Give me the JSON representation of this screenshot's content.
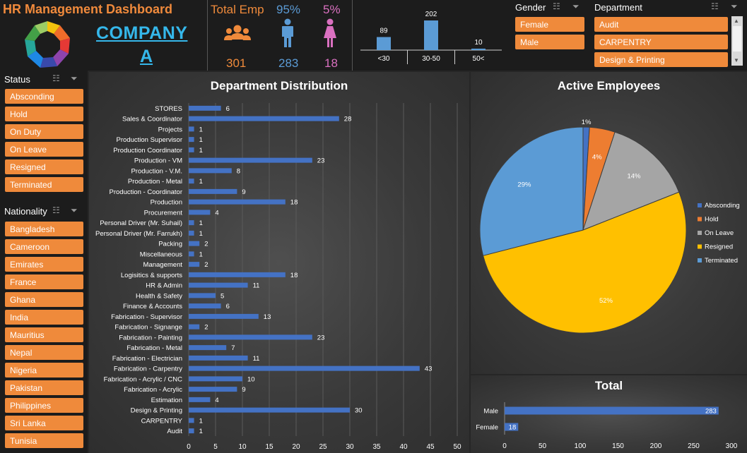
{
  "header": {
    "title": "HR Management Dashboard",
    "company_line1": "COMPANY",
    "company_line2": "A",
    "total_label": "Total Emp",
    "total_value": "301",
    "male_pct": "95%",
    "male_value": "283",
    "female_pct": "5%",
    "female_value": "18"
  },
  "colors": {
    "orange": "#ef8a3b",
    "male_blue": "#5b9bd5",
    "female_pink": "#da70c0",
    "bar_blue": "#4472c4",
    "background": "#262626"
  },
  "icons": [
    "group-icon",
    "male-icon",
    "female-icon",
    "filter-icon",
    "multiselect-icon"
  ],
  "gender_slicer": {
    "title": "Gender",
    "items": [
      "Female",
      "Male"
    ]
  },
  "department_slicer": {
    "title": "Department",
    "items": [
      "Audit",
      "CARPENTRY",
      "Design & Printing"
    ]
  },
  "status_slicer": {
    "title": "Status",
    "items": [
      "Absconding",
      "Hold",
      "On Duty",
      "On Leave",
      "Resigned",
      "Terminated"
    ]
  },
  "nationality_slicer": {
    "title": "Nationality",
    "items": [
      "Bangladesh",
      "Cameroon",
      "Emirates",
      "France",
      "Ghana",
      "India",
      "Mauritius",
      "Nepal",
      "Nigeria",
      "Pakistan",
      "Philippines",
      "Sri Lanka",
      "Tunisia"
    ]
  },
  "chart_data": [
    {
      "type": "bar",
      "id": "age",
      "title": "",
      "categories": [
        "<30",
        "30-50",
        "50<"
      ],
      "values": [
        89,
        202,
        10
      ]
    },
    {
      "type": "bar",
      "orientation": "horizontal",
      "id": "department",
      "title": "Department Distribution",
      "categories": [
        "STORES",
        "Sales & Coordinator",
        "Projects",
        "Production Supervisor",
        "Production Coordinator",
        "Production - VM",
        "Production - V.M.",
        "Production - Metal",
        "Production - Coordinator",
        "Production",
        "Procurement",
        "Personal Driver (Mr. Suhail)",
        "Personal Driver (Mr. Farrukh)",
        "Packing",
        "Miscellaneous",
        "Management",
        "Logisitics & supports",
        "HR & Admin",
        "Health & Safety",
        "Finance & Accounts",
        "Fabrication - Supervisor",
        "Fabrication - Signange",
        "Fabrication - Painting",
        "Fabrication - Metal",
        "Fabrication - Electrician",
        "Fabrication - Carpentry",
        "Fabrication - Acrylic / CNC",
        "Fabrication - Acrylic",
        "Estimation",
        "Design & Printing",
        "CARPENTRY",
        "Audit"
      ],
      "values": [
        6,
        28,
        1,
        1,
        1,
        23,
        8,
        1,
        9,
        18,
        4,
        1,
        1,
        2,
        1,
        2,
        18,
        11,
        5,
        6,
        13,
        2,
        23,
        7,
        11,
        43,
        10,
        9,
        4,
        30,
        1,
        1
      ],
      "xlim": [
        0,
        50
      ],
      "xticks": [
        0,
        5,
        10,
        15,
        20,
        25,
        30,
        35,
        40,
        45,
        50
      ],
      "grid": true
    },
    {
      "type": "pie",
      "id": "active",
      "title": "Active Employees",
      "labels": [
        "Absconding",
        "Hold",
        "On Leave",
        "Resigned",
        "Terminated"
      ],
      "values": [
        1,
        4,
        14,
        52,
        29
      ],
      "value_labels": [
        "1%",
        "4%",
        "14%",
        "52%",
        "29%"
      ],
      "colors": [
        "#4472c4",
        "#ed7d31",
        "#a5a5a5",
        "#ffc000",
        "#5b9bd5"
      ],
      "legend": "right"
    },
    {
      "type": "bar",
      "orientation": "horizontal",
      "id": "total",
      "title": "Total",
      "categories": [
        "Male",
        "Female"
      ],
      "values": [
        283,
        18
      ],
      "xlim": [
        0,
        300
      ],
      "xticks": [
        0,
        50,
        100,
        150,
        200,
        250,
        300
      ]
    }
  ]
}
